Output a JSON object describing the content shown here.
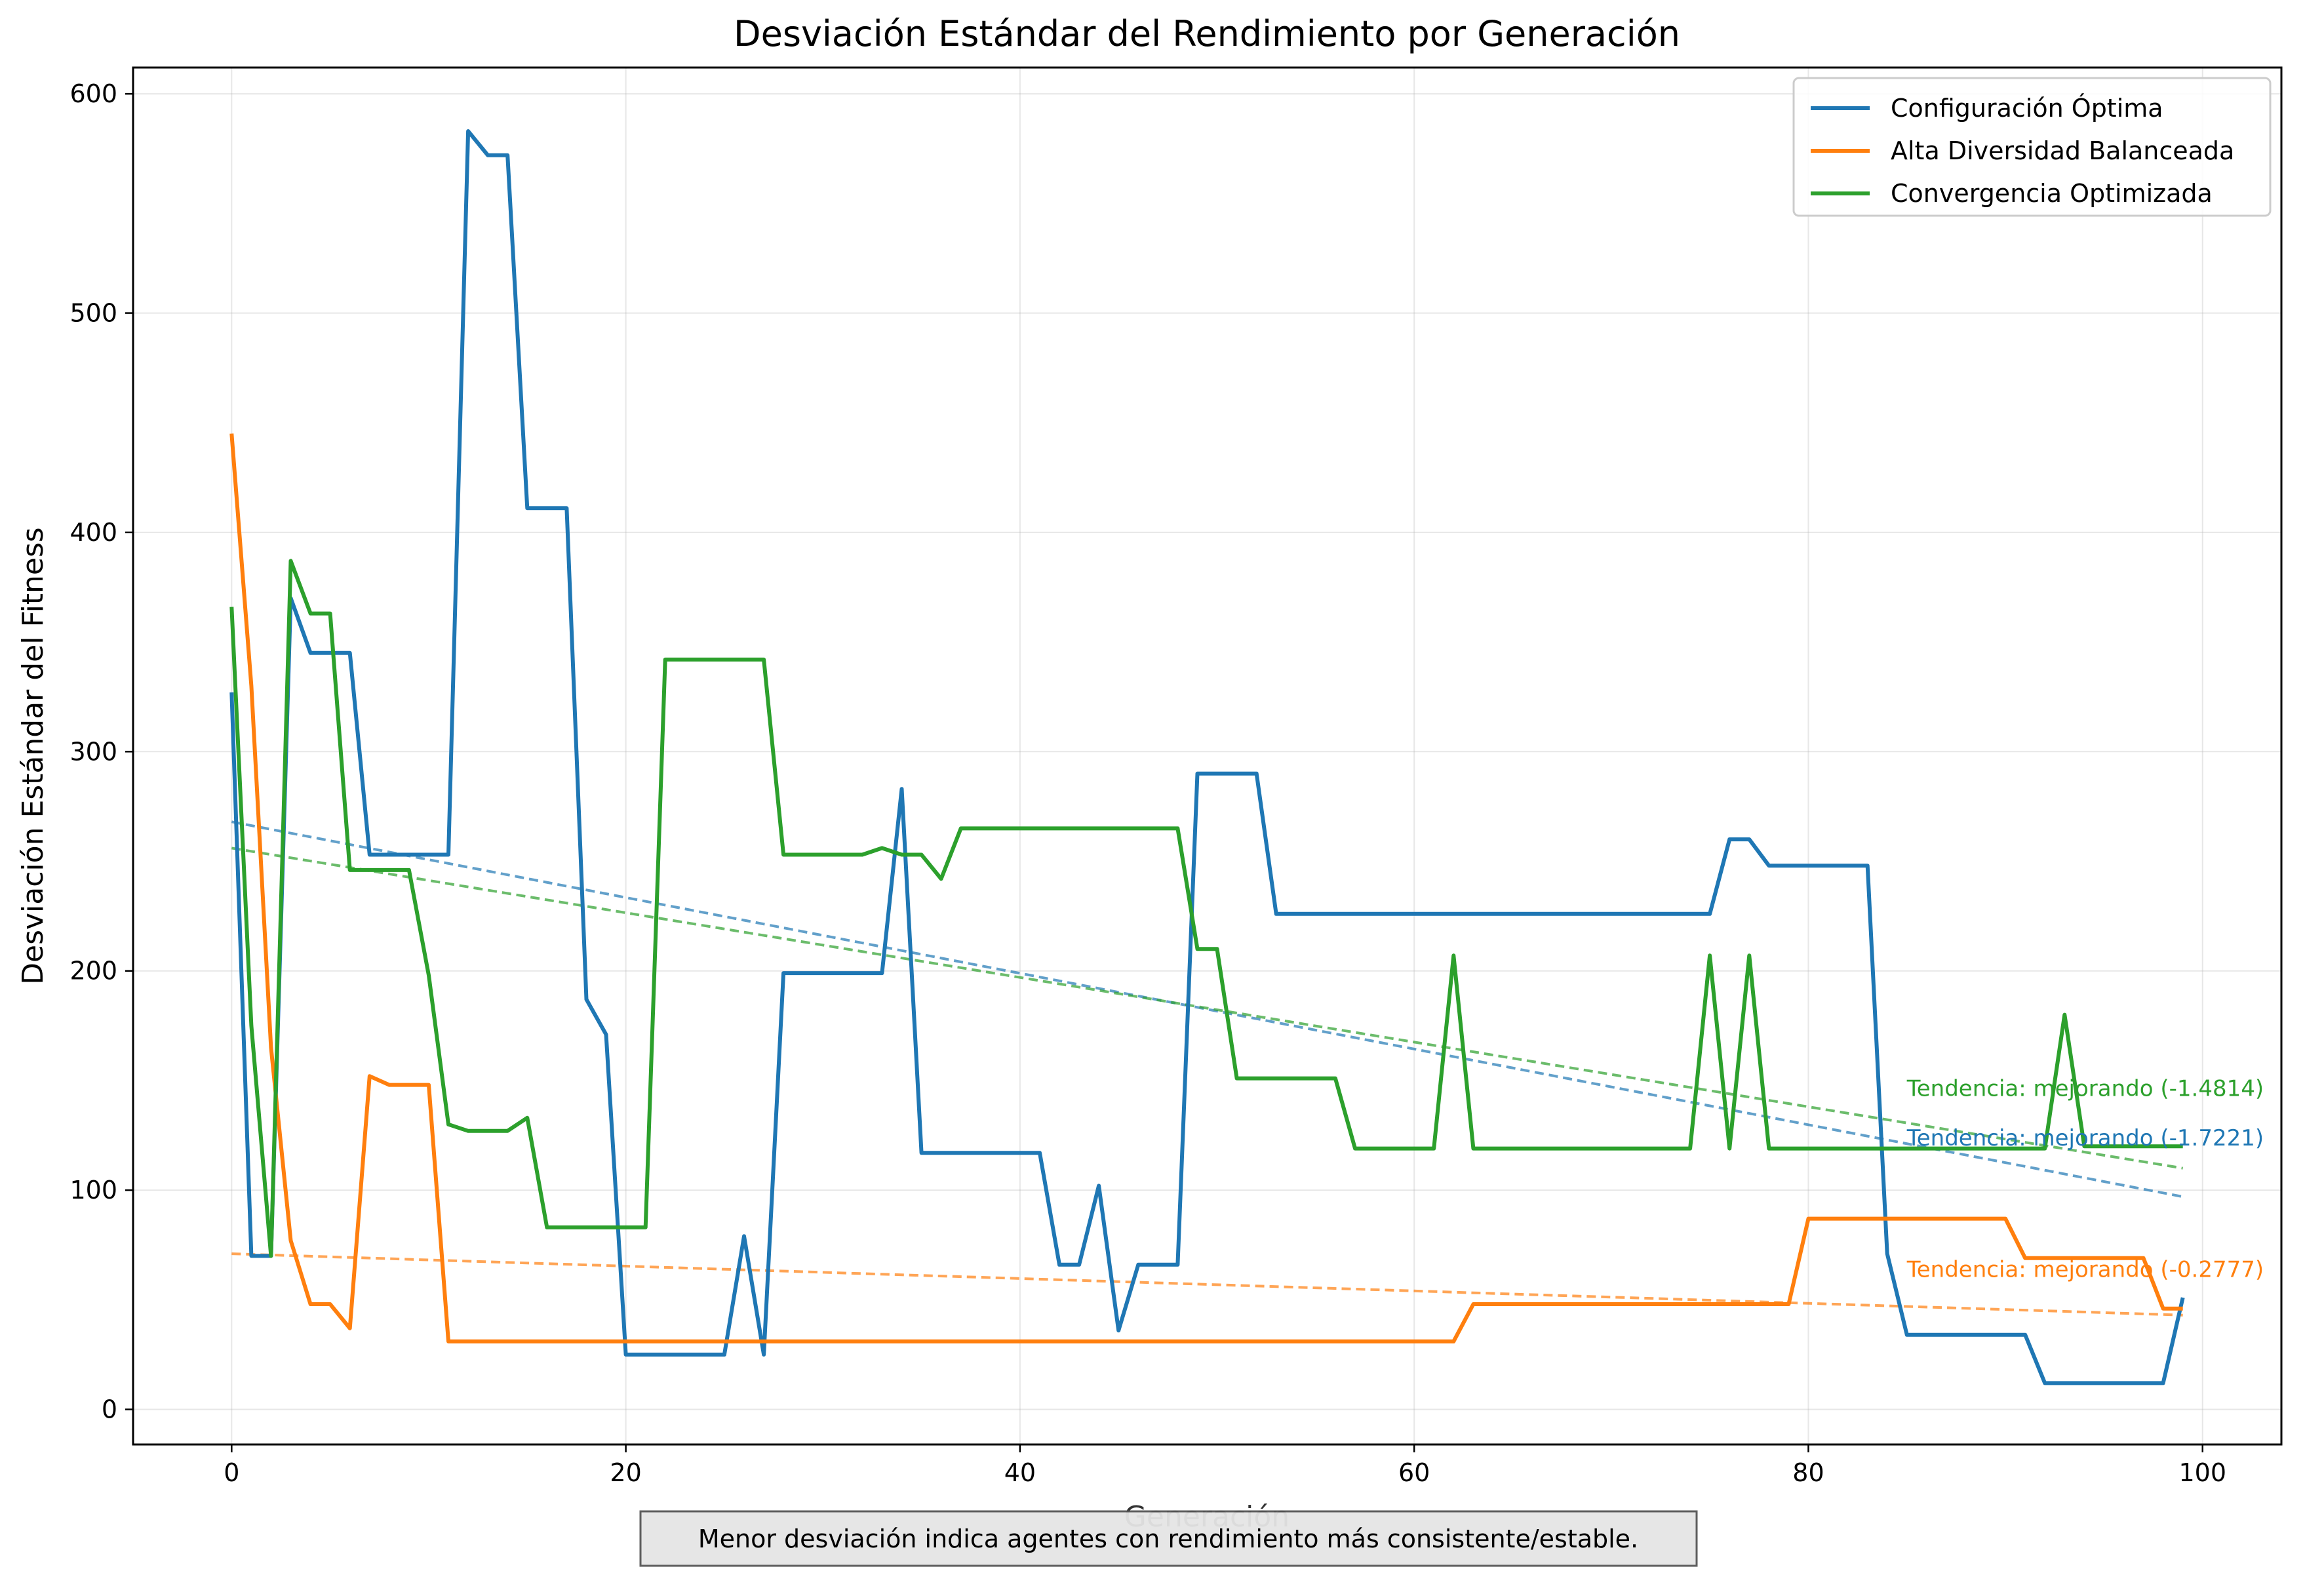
{
  "chart_data": {
    "type": "line",
    "title": "Desviación Estándar del Rendimiento por Generación",
    "xlabel": "Generación",
    "ylabel": "Desviación Estándar del Fitness",
    "xlim": [
      -5,
      104
    ],
    "ylim": [
      -16,
      612
    ],
    "xticks": [
      0,
      20,
      40,
      60,
      80,
      100
    ],
    "yticks": [
      0,
      100,
      200,
      300,
      400,
      500,
      600
    ],
    "grid": true,
    "legend_position": "top-right",
    "footnote": "Menor desviación indica agentes con rendimiento más consistente/estable.",
    "series": [
      {
        "name": "Configuración Óptima",
        "color": "#1f77b4",
        "x": [
          0,
          1,
          2,
          3,
          4,
          5,
          6,
          7,
          8,
          9,
          10,
          11,
          12,
          13,
          14,
          15,
          16,
          17,
          18,
          19,
          20,
          21,
          22,
          23,
          24,
          25,
          26,
          27,
          28,
          29,
          30,
          31,
          32,
          33,
          34,
          35,
          36,
          37,
          38,
          39,
          40,
          41,
          42,
          43,
          44,
          45,
          46,
          47,
          48,
          49,
          50,
          51,
          52,
          53,
          54,
          55,
          56,
          57,
          58,
          59,
          60,
          61,
          62,
          63,
          64,
          65,
          66,
          67,
          68,
          69,
          70,
          71,
          72,
          73,
          74,
          75,
          76,
          77,
          78,
          79,
          80,
          81,
          82,
          83,
          84,
          85,
          86,
          87,
          88,
          89,
          90,
          91,
          92,
          93,
          94,
          95,
          96,
          97,
          98,
          99
        ],
        "y": [
          327,
          70,
          70,
          370,
          345,
          345,
          345,
          253,
          253,
          253,
          253,
          253,
          583,
          572,
          572,
          411,
          411,
          411,
          187,
          171,
          25,
          25,
          25,
          25,
          25,
          25,
          79,
          25,
          199,
          199,
          199,
          199,
          199,
          199,
          283,
          117,
          117,
          117,
          117,
          117,
          117,
          117,
          66,
          66,
          102,
          36,
          66,
          66,
          66,
          290,
          290,
          290,
          290,
          226,
          226,
          226,
          226,
          226,
          226,
          226,
          226,
          226,
          226,
          226,
          226,
          226,
          226,
          226,
          226,
          226,
          226,
          226,
          226,
          226,
          226,
          226,
          260,
          260,
          248,
          248,
          248,
          248,
          248,
          248,
          71,
          34,
          34,
          34,
          34,
          34,
          34,
          34,
          12,
          12,
          12,
          12,
          12,
          12,
          12,
          51
        ],
        "trend": {
          "y_start": 268,
          "y_end": 97,
          "label": "Tendencia: mejorando (-1.7221)"
        }
      },
      {
        "name": "Alta Diversidad Balanceada",
        "color": "#ff7f0e",
        "x": [
          0,
          1,
          2,
          3,
          4,
          5,
          6,
          7,
          8,
          9,
          10,
          11,
          12,
          13,
          14,
          15,
          16,
          17,
          18,
          19,
          20,
          21,
          22,
          23,
          24,
          25,
          26,
          27,
          28,
          29,
          30,
          31,
          32,
          33,
          34,
          35,
          36,
          37,
          38,
          39,
          40,
          41,
          42,
          43,
          44,
          45,
          46,
          47,
          48,
          49,
          50,
          51,
          52,
          53,
          54,
          55,
          56,
          57,
          58,
          59,
          60,
          61,
          62,
          63,
          64,
          65,
          66,
          67,
          68,
          69,
          70,
          71,
          72,
          73,
          74,
          75,
          76,
          77,
          78,
          79,
          80,
          81,
          82,
          83,
          84,
          85,
          86,
          87,
          88,
          89,
          90,
          91,
          92,
          93,
          94,
          95,
          96,
          97,
          98,
          99
        ],
        "y": [
          445,
          330,
          165,
          77,
          48,
          48,
          37,
          152,
          148,
          148,
          148,
          31,
          31,
          31,
          31,
          31,
          31,
          31,
          31,
          31,
          31,
          31,
          31,
          31,
          31,
          31,
          31,
          31,
          31,
          31,
          31,
          31,
          31,
          31,
          31,
          31,
          31,
          31,
          31,
          31,
          31,
          31,
          31,
          31,
          31,
          31,
          31,
          31,
          31,
          31,
          31,
          31,
          31,
          31,
          31,
          31,
          31,
          31,
          31,
          31,
          31,
          31,
          31,
          48,
          48,
          48,
          48,
          48,
          48,
          48,
          48,
          48,
          48,
          48,
          48,
          48,
          48,
          48,
          48,
          48,
          87,
          87,
          87,
          87,
          87,
          87,
          87,
          87,
          87,
          87,
          87,
          69,
          69,
          69,
          69,
          69,
          69,
          69,
          46,
          46
        ],
        "trend": {
          "y_start": 71,
          "y_end": 43,
          "label": "Tendencia: mejorando (-0.2777)"
        }
      },
      {
        "name": "Convergencia Optimizada",
        "color": "#2ca02c",
        "x": [
          0,
          1,
          2,
          3,
          4,
          5,
          6,
          7,
          8,
          9,
          10,
          11,
          12,
          13,
          14,
          15,
          16,
          17,
          18,
          19,
          20,
          21,
          22,
          23,
          24,
          25,
          26,
          27,
          28,
          29,
          30,
          31,
          32,
          33,
          34,
          35,
          36,
          37,
          38,
          39,
          40,
          41,
          42,
          43,
          44,
          45,
          46,
          47,
          48,
          49,
          50,
          51,
          52,
          53,
          54,
          55,
          56,
          57,
          58,
          59,
          60,
          61,
          62,
          63,
          64,
          65,
          66,
          67,
          68,
          69,
          70,
          71,
          72,
          73,
          74,
          75,
          76,
          77,
          78,
          79,
          80,
          81,
          82,
          83,
          84,
          85,
          86,
          87,
          88,
          89,
          90,
          91,
          92,
          93,
          94,
          95,
          96,
          97,
          98,
          99
        ],
        "y": [
          366,
          175,
          70,
          387,
          363,
          363,
          246,
          246,
          246,
          246,
          198,
          130,
          127,
          127,
          127,
          133,
          83,
          83,
          83,
          83,
          83,
          83,
          342,
          342,
          342,
          342,
          342,
          342,
          253,
          253,
          253,
          253,
          253,
          256,
          253,
          253,
          242,
          265,
          265,
          265,
          265,
          265,
          265,
          265,
          265,
          265,
          265,
          265,
          265,
          210,
          210,
          151,
          151,
          151,
          151,
          151,
          151,
          119,
          119,
          119,
          119,
          119,
          207,
          119,
          119,
          119,
          119,
          119,
          119,
          119,
          119,
          119,
          119,
          119,
          119,
          207,
          119,
          207,
          119,
          119,
          119,
          119,
          119,
          119,
          119,
          119,
          119,
          119,
          119,
          119,
          119,
          119,
          119,
          180,
          120,
          120,
          120,
          120,
          120,
          120
        ],
        "trend": {
          "y_start": 256,
          "y_end": 110,
          "label": "Tendencia: mejorando (-1.4814)"
        }
      }
    ]
  }
}
